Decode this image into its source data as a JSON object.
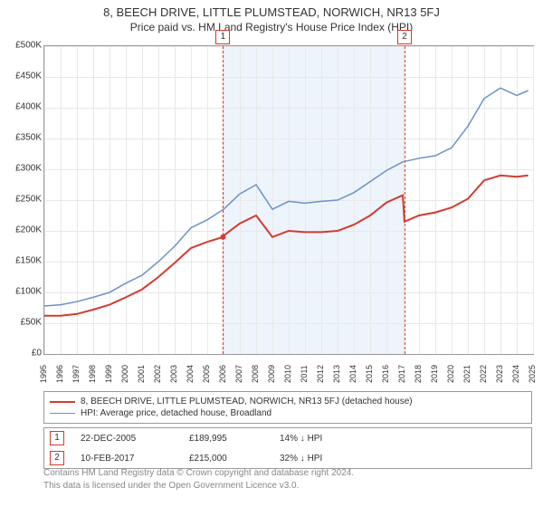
{
  "title": "8, BEECH DRIVE, LITTLE PLUMSTEAD, NORWICH, NR13 5FJ",
  "subtitle": "Price paid vs. HM Land Registry's House Price Index (HPI)",
  "chart": {
    "type": "line",
    "background_color": "#ffffff",
    "grid_color": "#e8e8e8",
    "border_color": "#999999",
    "xlim": [
      1995,
      2025
    ],
    "ylim": [
      0,
      500000
    ],
    "ytick_step": 50000,
    "label_fontsize": 10,
    "yticks": [
      "£0",
      "£50K",
      "£100K",
      "£150K",
      "£200K",
      "£250K",
      "£300K",
      "£350K",
      "£400K",
      "£450K",
      "£500K"
    ],
    "xticks": [
      1995,
      1996,
      1997,
      1998,
      1999,
      2000,
      2001,
      2002,
      2003,
      2004,
      2005,
      2006,
      2007,
      2008,
      2009,
      2010,
      2011,
      2012,
      2013,
      2014,
      2015,
      2016,
      2017,
      2018,
      2019,
      2020,
      2021,
      2022,
      2023,
      2024,
      2025
    ],
    "shade_start_year": 2005.97,
    "shade_end_year": 2017.11,
    "series": [
      {
        "name": "property",
        "label": "8, BEECH DRIVE, LITTLE PLUMSTEAD, NORWICH, NR13 5FJ (detached house)",
        "color": "#d43a2f",
        "line_width": 2,
        "x": [
          1995,
          1996,
          1997,
          1998,
          1999,
          2000,
          2001,
          2002,
          2003,
          2004,
          2005,
          2005.97,
          2006,
          2007,
          2008,
          2009,
          2010,
          2011,
          2012,
          2013,
          2014,
          2015,
          2016,
          2017,
          2017.11,
          2018,
          2019,
          2020,
          2021,
          2022,
          2023,
          2024,
          2024.7
        ],
        "y": [
          62000,
          62000,
          65000,
          72000,
          80000,
          92000,
          105000,
          125000,
          148000,
          172000,
          182000,
          189995,
          192000,
          212000,
          225000,
          190000,
          200000,
          198000,
          198000,
          200000,
          210000,
          225000,
          246000,
          258000,
          215000,
          225000,
          230000,
          238000,
          252000,
          282000,
          290000,
          288000,
          290000
        ]
      },
      {
        "name": "hpi",
        "label": "HPI: Average price, detached house, Broadland",
        "color": "#6d91c6",
        "line_width": 1.5,
        "x": [
          1995,
          1996,
          1997,
          1998,
          1999,
          2000,
          2001,
          2002,
          2003,
          2004,
          2005,
          2006,
          2007,
          2008,
          2009,
          2010,
          2011,
          2012,
          2013,
          2014,
          2015,
          2016,
          2017,
          2018,
          2019,
          2020,
          2021,
          2022,
          2023,
          2024,
          2024.7
        ],
        "y": [
          78000,
          80000,
          85000,
          92000,
          100000,
          115000,
          128000,
          150000,
          175000,
          205000,
          218000,
          235000,
          260000,
          275000,
          235000,
          248000,
          245000,
          248000,
          250000,
          262000,
          280000,
          298000,
          312000,
          318000,
          322000,
          335000,
          370000,
          415000,
          432000,
          420000,
          428000
        ]
      }
    ],
    "events": [
      {
        "num": "1",
        "year": 2005.97,
        "date": "22-DEC-2005",
        "price": "£189,995",
        "delta": "14% ↓ HPI"
      },
      {
        "num": "2",
        "year": 2017.11,
        "date": "10-FEB-2017",
        "price": "£215,000",
        "delta": "32% ↓ HPI"
      }
    ],
    "sale_marker": {
      "year": 2005.97,
      "value": 189995,
      "color": "#d43a2f",
      "radius": 3
    }
  },
  "attribution": {
    "line1": "Contains HM Land Registry data © Crown copyright and database right 2024.",
    "line2": "This data is licensed under the Open Government Licence v3.0."
  }
}
